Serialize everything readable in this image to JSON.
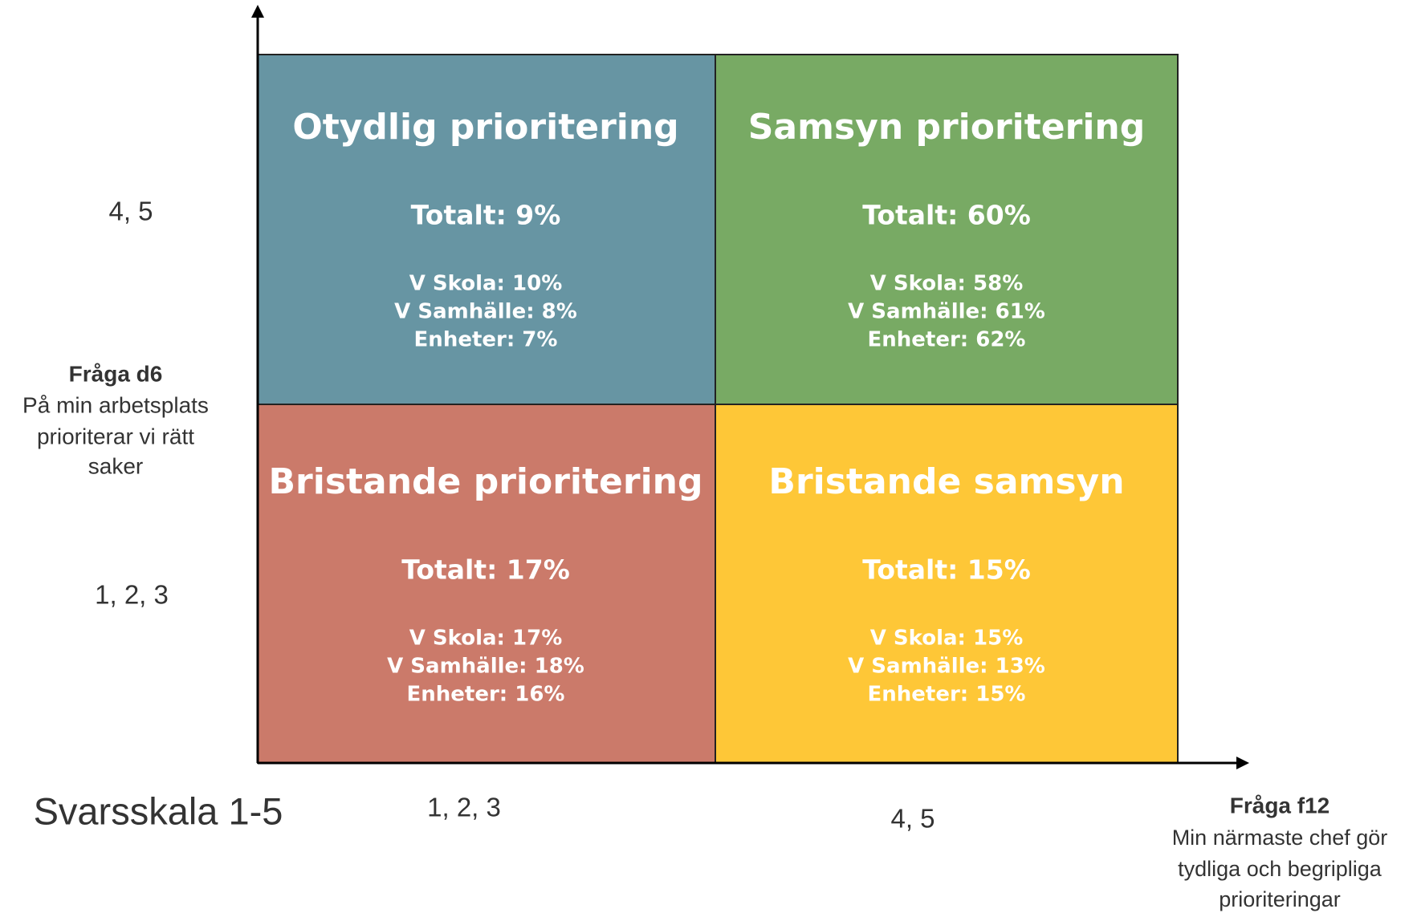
{
  "y_axis": {
    "title": "Fråga d6",
    "lines": [
      "På min arbetsplats",
      "prioriterar vi rätt",
      "saker"
    ],
    "high": "4, 5",
    "low": "1, 2, 3"
  },
  "x_axis": {
    "title": "Fråga f12",
    "lines": [
      "Min närmaste chef gör",
      "tydliga och begripliga",
      "prioriteringar"
    ],
    "low": "1, 2, 3",
    "high": "4, 5"
  },
  "scale_label": "Svarsskala 1-5",
  "quadrants": [
    {
      "title": "Otydlig prioritering",
      "total": "Totalt: 9%",
      "lines": [
        "V Skola: 10%",
        "V Samhälle: 8%",
        "Enheter: 7%"
      ]
    },
    {
      "title": "Samsyn prioritering",
      "total": "Totalt: 60%",
      "lines": [
        "V Skola: 58%",
        "V Samhälle: 61%",
        "Enheter: 62%"
      ]
    },
    {
      "title": "Bristande prioritering",
      "total": "Totalt: 17%",
      "lines": [
        "V Skola: 17%",
        "V Samhälle: 18%",
        "Enheter: 16%"
      ]
    },
    {
      "title": "Bristande samsyn",
      "total": "Totalt: 15%",
      "lines": [
        "V Skola: 15%",
        "V Samhälle: 13%",
        "Enheter: 15%"
      ]
    }
  ]
}
